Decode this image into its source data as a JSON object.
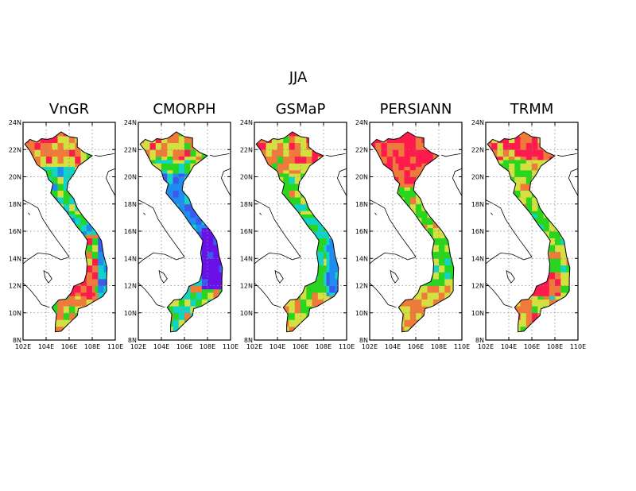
{
  "figure": {
    "season_title": "JJA",
    "panels": [
      {
        "title": "VnGR",
        "palette": "vngr"
      },
      {
        "title": "CMORPH",
        "palette": "cmorph"
      },
      {
        "title": "GSMaP",
        "palette": "gsmap"
      },
      {
        "title": "PERSIANN",
        "palette": "persiann"
      },
      {
        "title": "TRMM",
        "palette": "trmm"
      }
    ],
    "lat_ticks": [
      "24N",
      "22N",
      "20N",
      "18N",
      "16N",
      "14N",
      "12N",
      "10N",
      "8N"
    ],
    "lon_ticks": [
      "102E",
      "104E",
      "106E",
      "108E",
      "110E"
    ],
    "lon_range": [
      102,
      110
    ],
    "lat_range": [
      8,
      24
    ],
    "grid": "dotted"
  },
  "colors": {
    "red": "#ff1a4d",
    "orange": "#f07a3a",
    "yellow": "#d4e040",
    "green": "#29d61e",
    "cyan": "#10d4c8",
    "blue": "#1e8cf0",
    "royal": "#3a5af0",
    "purple": "#6a10e8"
  }
}
